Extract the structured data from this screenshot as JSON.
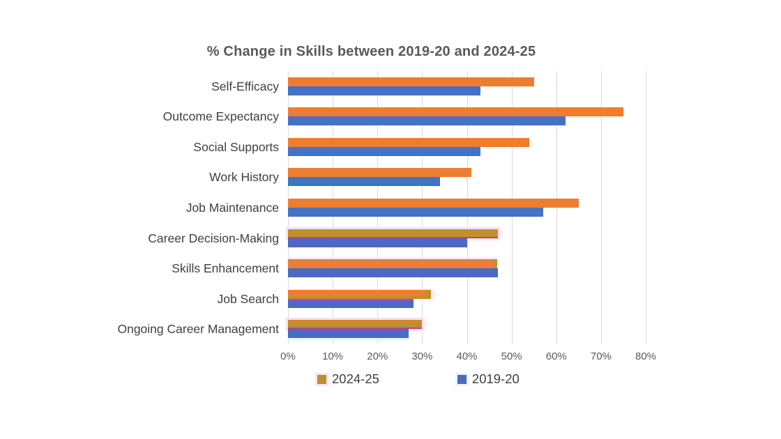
{
  "chart_data": {
    "type": "bar",
    "orientation": "horizontal",
    "title": "% Change in Skills between 2019-20 and 2024-25",
    "xlabel": "",
    "ylabel": "",
    "xlim": [
      0,
      80
    ],
    "x_ticks": [
      "0%",
      "10%",
      "20%",
      "30%",
      "40%",
      "50%",
      "60%",
      "70%",
      "80%"
    ],
    "grid": true,
    "legend_position": "bottom",
    "categories": [
      "Self-Efficacy",
      "Outcome Expectancy",
      "Social Supports",
      "Work History",
      "Job Maintenance",
      "Career Decision-Making",
      "Skills Enhancement",
      "Job Search",
      "Ongoing Career Management"
    ],
    "series": [
      {
        "name": "2024-25",
        "color": "#ED7D31",
        "values": [
          55,
          75,
          54,
          41,
          65,
          47,
          46,
          31,
          30
        ]
      },
      {
        "name": "2019-20",
        "color": "#4472C4",
        "values": [
          43,
          62,
          43,
          34,
          57,
          40,
          47,
          28,
          27
        ]
      }
    ],
    "rows": [
      {
        "category": "Self-Efficacy",
        "values": [
          55,
          43
        ],
        "style24": "normal",
        "style19": "normal"
      },
      {
        "category": "Outcome Expectancy",
        "values": [
          75,
          62
        ],
        "style24": "normal",
        "style19": "normal"
      },
      {
        "category": "Social Supports",
        "values": [
          54,
          43
        ],
        "style24": "normal",
        "style19": "normal"
      },
      {
        "category": "Work History",
        "values": [
          41,
          34
        ],
        "style24": "normal",
        "style19": "normal"
      },
      {
        "category": "Job Maintenance",
        "values": [
          65,
          57
        ],
        "style24": "normal",
        "style19": "normal"
      },
      {
        "category": "Career Decision-Making",
        "values": [
          47,
          40
        ],
        "style24": "gold",
        "style19": "violet"
      },
      {
        "category": "Skills Enhancement",
        "values": [
          46,
          47
        ],
        "style24": "gold-edge",
        "style19": "violet"
      },
      {
        "category": "Job Search",
        "values": [
          31,
          28
        ],
        "style24": "gold-tip",
        "style19": "violet-top"
      },
      {
        "category": "Ongoing Career Management",
        "values": [
          30,
          27
        ],
        "style24": "gold",
        "style19": "violet-glow"
      }
    ],
    "legend": [
      {
        "label": "2024-25",
        "swatch": "#BD8F33",
        "glow": "#FBE2F3"
      },
      {
        "label": "2019-20",
        "swatch": "#4E68C0",
        "glow": "#E6F6FC"
      }
    ],
    "colors": {
      "orange": "#ED7D31",
      "blue": "#4472C4",
      "blue_violet": "#4D68C5",
      "gold": "#C0902F",
      "magenta": "#CB3A7E",
      "purple": "#8656C8",
      "glow_pink": "#FBDFF2",
      "glow_cyan": "#DCF4FB",
      "grid": "#D9D9D9",
      "title_text": "#595959",
      "label_text": "#404040",
      "tick_text": "#595959"
    }
  }
}
